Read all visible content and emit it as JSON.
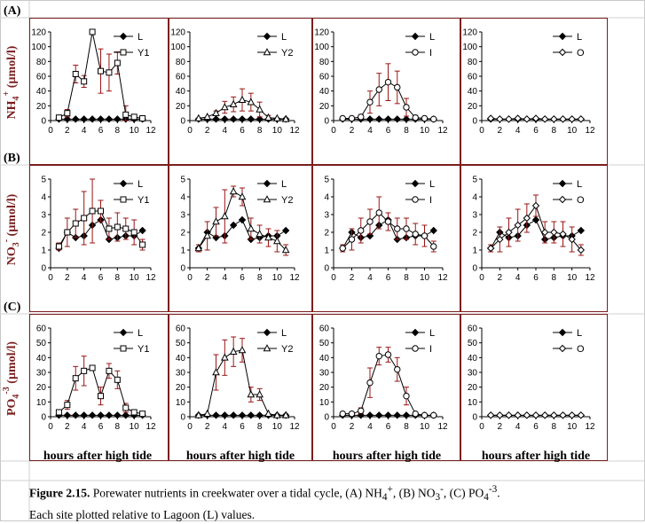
{
  "rows": [
    {
      "label": "(A)",
      "ylabel_main": "NH",
      "ylabel_sub": "4",
      "ylabel_sup": "+",
      "ylabel_unit": " (µmol/l)",
      "y_ticks": [
        "0",
        "20",
        "40",
        "60",
        "80",
        "100",
        "120"
      ],
      "ylim": [
        0,
        120
      ]
    },
    {
      "label": "(B)",
      "ylabel_main": "NO",
      "ylabel_sub": "3",
      "ylabel_sup": "-",
      "ylabel_unit": " (µmol/l)",
      "y_ticks": [
        "0",
        "1",
        "2",
        "3",
        "4",
        "5"
      ],
      "ylim": [
        0,
        5
      ]
    },
    {
      "label": "(C)",
      "ylabel_main": "PO",
      "ylabel_sub": "4",
      "ylabel_sup": "-3",
      "ylabel_unit": " (µmol/l)",
      "y_ticks": [
        "0",
        "10",
        "20",
        "30",
        "40",
        "50",
        "60"
      ],
      "ylim": [
        0,
        60
      ]
    }
  ],
  "x_ticks": [
    "0",
    "2",
    "4",
    "6",
    "8",
    "10",
    "12"
  ],
  "xlim": [
    0,
    12
  ],
  "xlabel": "hours after high tide",
  "chart_data": [
    {
      "type": "line",
      "row": 0,
      "col": 0,
      "ylim": [
        0,
        120
      ],
      "xlim": [
        0,
        12
      ],
      "series": [
        {
          "name": "L",
          "marker": "filled-diamond",
          "x": [
            1,
            2,
            3,
            4,
            5,
            6,
            7,
            8,
            9,
            10,
            11
          ],
          "y": [
            2,
            2,
            2,
            2,
            2,
            2,
            2,
            2,
            2,
            2,
            2
          ]
        },
        {
          "name": "Y1",
          "marker": "open-square",
          "x": [
            1,
            2,
            3,
            4,
            5,
            6,
            7,
            8,
            9,
            10,
            11
          ],
          "y": [
            4,
            10,
            63,
            53,
            120,
            67,
            65,
            78,
            8,
            5,
            3
          ],
          "err": [
            0,
            5,
            12,
            8,
            0,
            30,
            25,
            15,
            12,
            0,
            0
          ]
        }
      ]
    },
    {
      "type": "line",
      "row": 0,
      "col": 1,
      "ylim": [
        0,
        120
      ],
      "xlim": [
        0,
        12
      ],
      "series": [
        {
          "name": "L",
          "marker": "filled-diamond",
          "x": [
            1,
            2,
            3,
            4,
            5,
            6,
            7,
            8,
            9,
            10,
            11
          ],
          "y": [
            2,
            2,
            2,
            2,
            2,
            2,
            2,
            2,
            2,
            2,
            2
          ]
        },
        {
          "name": "Y2",
          "marker": "open-triangle",
          "x": [
            1,
            2,
            3,
            4,
            5,
            6,
            7,
            8,
            9,
            10,
            11
          ],
          "y": [
            3,
            5,
            10,
            18,
            22,
            28,
            25,
            15,
            4,
            3,
            2
          ],
          "err": [
            0,
            0,
            3,
            8,
            10,
            15,
            12,
            10,
            3,
            0,
            0
          ]
        }
      ]
    },
    {
      "type": "line",
      "row": 0,
      "col": 2,
      "ylim": [
        0,
        120
      ],
      "xlim": [
        0,
        12
      ],
      "series": [
        {
          "name": "L",
          "marker": "filled-diamond",
          "x": [
            1,
            2,
            3,
            4,
            5,
            6,
            7,
            8,
            9,
            10,
            11
          ],
          "y": [
            2,
            2,
            2,
            2,
            2,
            2,
            2,
            2,
            2,
            2,
            2
          ]
        },
        {
          "name": "I",
          "marker": "open-circle",
          "x": [
            1,
            2,
            3,
            4,
            5,
            6,
            7,
            8,
            9,
            10,
            11
          ],
          "y": [
            3,
            3,
            5,
            25,
            42,
            52,
            45,
            18,
            4,
            3,
            2
          ],
          "err": [
            0,
            0,
            3,
            15,
            22,
            25,
            22,
            12,
            3,
            0,
            0
          ]
        }
      ]
    },
    {
      "type": "line",
      "row": 0,
      "col": 3,
      "ylim": [
        0,
        120
      ],
      "xlim": [
        0,
        12
      ],
      "series": [
        {
          "name": "L",
          "marker": "filled-diamond",
          "x": [
            1,
            2,
            3,
            4,
            5,
            6,
            7,
            8,
            9,
            10,
            11
          ],
          "y": [
            2,
            2,
            2,
            2,
            2,
            2,
            2,
            2,
            2,
            2,
            2
          ]
        },
        {
          "name": "O",
          "marker": "open-diamond",
          "x": [
            1,
            2,
            3,
            4,
            5,
            6,
            7,
            8,
            9,
            10,
            11
          ],
          "y": [
            3,
            2,
            2,
            3,
            2,
            3,
            2,
            2,
            2,
            2,
            2
          ],
          "err": [
            0,
            0,
            0,
            0,
            0,
            0,
            0,
            0,
            0,
            0,
            0
          ]
        }
      ]
    },
    {
      "type": "line",
      "row": 1,
      "col": 0,
      "ylim": [
        0,
        5
      ],
      "xlim": [
        0,
        12
      ],
      "series": [
        {
          "name": "L",
          "marker": "filled-diamond",
          "x": [
            1,
            2,
            3,
            4,
            5,
            6,
            7,
            8,
            9,
            10,
            11
          ],
          "y": [
            1.1,
            2.0,
            1.7,
            1.8,
            2.4,
            2.7,
            1.6,
            1.7,
            1.8,
            1.8,
            2.1
          ]
        },
        {
          "name": "Y1",
          "marker": "open-square",
          "x": [
            1,
            2,
            3,
            4,
            5,
            6,
            7,
            8,
            9,
            10,
            11
          ],
          "y": [
            1.2,
            2.0,
            2.5,
            2.8,
            3.2,
            3.2,
            2.2,
            2.3,
            2.2,
            2.0,
            1.3
          ],
          "err": [
            0.2,
            0.8,
            0.8,
            1.5,
            1.8,
            0.6,
            0.6,
            0.8,
            0.6,
            0.7,
            0.3
          ]
        }
      ]
    },
    {
      "type": "line",
      "row": 1,
      "col": 1,
      "ylim": [
        0,
        5
      ],
      "xlim": [
        0,
        12
      ],
      "series": [
        {
          "name": "L",
          "marker": "filled-diamond",
          "x": [
            1,
            2,
            3,
            4,
            5,
            6,
            7,
            8,
            9,
            10,
            11
          ],
          "y": [
            1.1,
            2.0,
            1.7,
            1.8,
            2.4,
            2.7,
            1.6,
            1.7,
            1.8,
            1.8,
            2.1
          ]
        },
        {
          "name": "Y2",
          "marker": "open-triangle",
          "x": [
            1,
            2,
            3,
            4,
            5,
            6,
            7,
            8,
            9,
            10,
            11
          ],
          "y": [
            1.1,
            1.8,
            2.6,
            2.9,
            4.3,
            4.0,
            2.2,
            1.9,
            1.7,
            1.5,
            1.0
          ],
          "err": [
            0.2,
            0.8,
            0.8,
            1.5,
            0.3,
            0.5,
            0.6,
            0.5,
            0.5,
            0.6,
            0.3
          ]
        }
      ]
    },
    {
      "type": "line",
      "row": 1,
      "col": 2,
      "ylim": [
        0,
        5
      ],
      "xlim": [
        0,
        12
      ],
      "series": [
        {
          "name": "L",
          "marker": "filled-diamond",
          "x": [
            1,
            2,
            3,
            4,
            5,
            6,
            7,
            8,
            9,
            10,
            11
          ],
          "y": [
            1.1,
            2.0,
            1.7,
            1.8,
            2.4,
            2.7,
            1.6,
            1.7,
            1.8,
            1.8,
            2.1
          ]
        },
        {
          "name": "I",
          "marker": "open-circle",
          "x": [
            1,
            2,
            3,
            4,
            5,
            6,
            7,
            8,
            9,
            10,
            11
          ],
          "y": [
            1.1,
            1.6,
            2.1,
            2.6,
            3.1,
            2.6,
            2.2,
            2.2,
            1.9,
            1.8,
            1.2
          ],
          "err": [
            0.2,
            0.6,
            0.7,
            0.7,
            0.9,
            0.5,
            0.6,
            0.6,
            0.6,
            0.6,
            0.3
          ]
        }
      ]
    },
    {
      "type": "line",
      "row": 1,
      "col": 3,
      "ylim": [
        0,
        5
      ],
      "xlim": [
        0,
        12
      ],
      "series": [
        {
          "name": "L",
          "marker": "filled-diamond",
          "x": [
            1,
            2,
            3,
            4,
            5,
            6,
            7,
            8,
            9,
            10,
            11
          ],
          "y": [
            1.1,
            2.0,
            1.7,
            1.8,
            2.4,
            2.7,
            1.6,
            1.7,
            1.8,
            1.8,
            2.1
          ]
        },
        {
          "name": "O",
          "marker": "open-diamond",
          "x": [
            1,
            2,
            3,
            4,
            5,
            6,
            7,
            8,
            9,
            10,
            11
          ],
          "y": [
            1.1,
            1.6,
            2.0,
            2.4,
            2.8,
            3.5,
            2.0,
            2.0,
            1.9,
            1.6,
            1.0
          ],
          "err": [
            0.2,
            0.7,
            0.8,
            0.9,
            0.8,
            0.6,
            0.6,
            0.6,
            0.7,
            0.7,
            0.3
          ]
        }
      ]
    },
    {
      "type": "line",
      "row": 2,
      "col": 0,
      "ylim": [
        0,
        60
      ],
      "xlim": [
        0,
        12
      ],
      "series": [
        {
          "name": "L",
          "marker": "filled-diamond",
          "x": [
            1,
            2,
            3,
            4,
            5,
            6,
            7,
            8,
            9,
            10,
            11
          ],
          "y": [
            1,
            1,
            1,
            1,
            1,
            1,
            1,
            1,
            1,
            1,
            1
          ]
        },
        {
          "name": "Y1",
          "marker": "open-square",
          "x": [
            1,
            2,
            3,
            4,
            5,
            6,
            7,
            8,
            9,
            10,
            11
          ],
          "y": [
            3,
            8,
            26,
            31,
            33,
            14,
            31,
            25,
            6,
            3,
            2
          ],
          "err": [
            0,
            3,
            8,
            10,
            0,
            6,
            5,
            6,
            3,
            0,
            0
          ]
        }
      ]
    },
    {
      "type": "line",
      "row": 2,
      "col": 1,
      "ylim": [
        0,
        60
      ],
      "xlim": [
        0,
        12
      ],
      "series": [
        {
          "name": "L",
          "marker": "filled-diamond",
          "x": [
            1,
            2,
            3,
            4,
            5,
            6,
            7,
            8,
            9,
            10,
            11
          ],
          "y": [
            1,
            1,
            1,
            1,
            1,
            1,
            1,
            1,
            1,
            1,
            1
          ]
        },
        {
          "name": "Y2",
          "marker": "open-triangle",
          "x": [
            1,
            2,
            3,
            4,
            5,
            6,
            7,
            8,
            9,
            10,
            11
          ],
          "y": [
            1,
            2,
            30,
            40,
            44,
            45,
            15,
            15,
            2,
            1,
            1
          ],
          "err": [
            0,
            0,
            12,
            12,
            10,
            8,
            5,
            4,
            0,
            0,
            0
          ]
        }
      ]
    },
    {
      "type": "line",
      "row": 2,
      "col": 2,
      "ylim": [
        0,
        60
      ],
      "xlim": [
        0,
        12
      ],
      "series": [
        {
          "name": "L",
          "marker": "filled-diamond",
          "x": [
            1,
            2,
            3,
            4,
            5,
            6,
            7,
            8,
            9,
            10,
            11
          ],
          "y": [
            1,
            1,
            1,
            1,
            1,
            1,
            1,
            1,
            1,
            1,
            1
          ]
        },
        {
          "name": "I",
          "marker": "open-circle",
          "x": [
            1,
            2,
            3,
            4,
            5,
            6,
            7,
            8,
            9,
            10,
            11
          ],
          "y": [
            2,
            2,
            4,
            23,
            41,
            42,
            32,
            14,
            2,
            1,
            1
          ],
          "err": [
            0,
            0,
            2,
            10,
            6,
            5,
            8,
            6,
            0,
            0,
            0
          ]
        }
      ]
    },
    {
      "type": "line",
      "row": 2,
      "col": 3,
      "ylim": [
        0,
        60
      ],
      "xlim": [
        0,
        12
      ],
      "series": [
        {
          "name": "L",
          "marker": "filled-diamond",
          "x": [
            1,
            2,
            3,
            4,
            5,
            6,
            7,
            8,
            9,
            10,
            11
          ],
          "y": [
            1,
            1,
            1,
            1,
            1,
            1,
            1,
            1,
            1,
            1,
            1
          ]
        },
        {
          "name": "O",
          "marker": "open-diamond",
          "x": [
            1,
            2,
            3,
            4,
            5,
            6,
            7,
            8,
            9,
            10,
            11
          ],
          "y": [
            1,
            1,
            1,
            1,
            1,
            1,
            1,
            1,
            1,
            1,
            1
          ],
          "err": [
            0,
            0,
            0,
            0,
            0,
            0,
            0,
            0,
            0,
            0,
            0
          ]
        }
      ]
    }
  ],
  "caption": {
    "figure": "Figure 2.15.",
    "line1_a": "  Porewater nutrients in creekwater over a tidal cycle, (A) NH",
    "line1_b": "4",
    "line1_c": "+",
    "line1_d": ", (B) NO",
    "line1_e": "3",
    "line1_f": "-",
    "line1_g": ", (C) PO",
    "line1_h": "4",
    "line1_i": "-3",
    "line1_j": ".",
    "line2": "Each site plotted relative to Lagoon (L) values."
  },
  "colors": {
    "border": "#7b1f1f",
    "errbar": "#9a1515",
    "line": "#000000",
    "grid": "#b0b0b0"
  }
}
